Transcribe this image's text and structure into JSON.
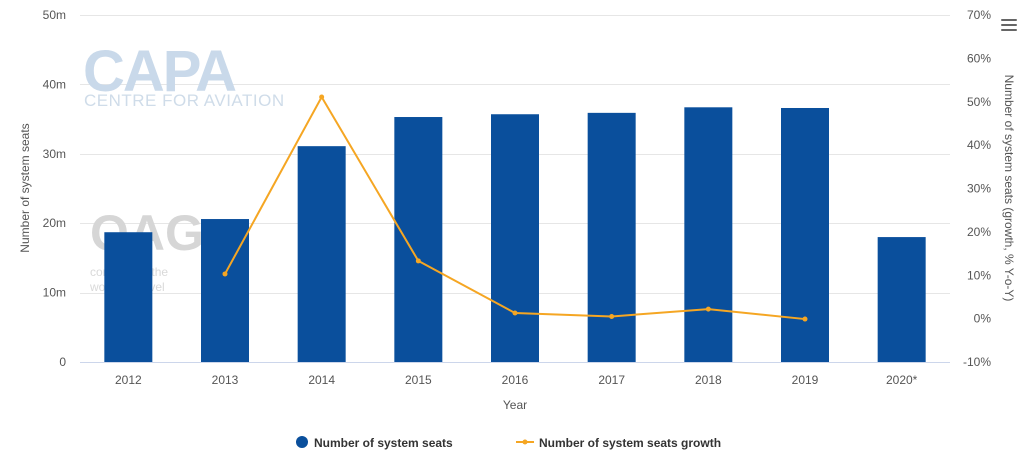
{
  "chart_data": {
    "type": "bar",
    "categories": [
      "2012",
      "2013",
      "2014",
      "2015",
      "2016",
      "2017",
      "2018",
      "2019",
      "2020*"
    ],
    "series": [
      {
        "name": "Number of system seats",
        "type": "bar",
        "axis": "left",
        "color": "#0a4f9c",
        "values": [
          18.7,
          20.6,
          31.1,
          35.3,
          35.7,
          35.9,
          36.7,
          36.6,
          18.0
        ]
      },
      {
        "name": "Number of system seats growth",
        "type": "line",
        "axis": "right",
        "color": "#f5a623",
        "values": [
          null,
          10.3,
          51.1,
          13.3,
          1.3,
          0.5,
          2.2,
          -0.1,
          null
        ]
      }
    ],
    "xlabel": "Year",
    "ylabel": "Number of system seats",
    "y2label": "Number of system seats (growth, % Y-o-Y)",
    "ylim": [
      0,
      50
    ],
    "y2lim": [
      -10,
      70
    ],
    "yticks": [
      "0",
      "10m",
      "20m",
      "30m",
      "40m",
      "50m"
    ],
    "y2ticks": [
      "-10%",
      "0%",
      "10%",
      "20%",
      "30%",
      "40%",
      "50%",
      "60%",
      "70%"
    ],
    "grid": true,
    "legend": "bottom-center"
  },
  "watermarks": {
    "capa_title": "CAPA",
    "capa_subtitle": "CENTRE FOR AVIATION",
    "oag_title": "OAG",
    "oag_line1": "connecting the",
    "oag_line2": "world of travel"
  },
  "menu_icon": "hamburger-menu-icon"
}
